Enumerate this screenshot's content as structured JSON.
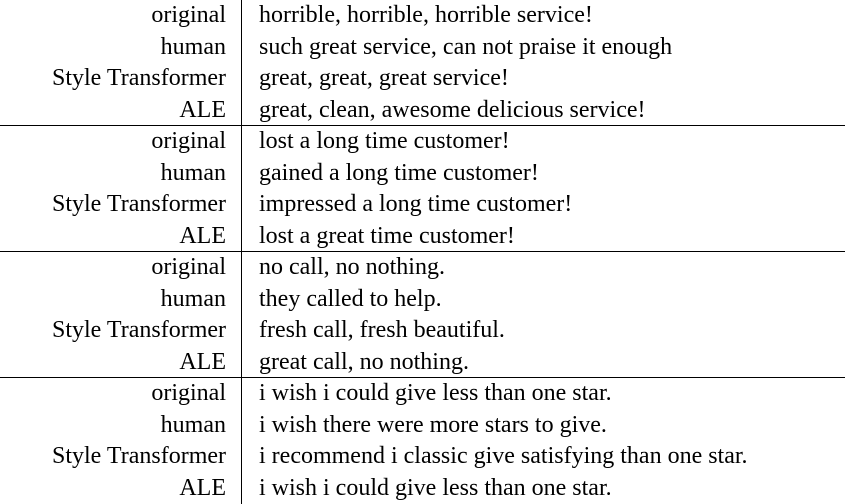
{
  "groups": [
    {
      "rows": [
        {
          "label": "original",
          "text": "horrible, horrible, horrible service!"
        },
        {
          "label": "human",
          "text": "such great service, can not praise it enough"
        },
        {
          "label": "Style Transformer",
          "text": "great, great, great service!"
        },
        {
          "label": "ALE",
          "text": "great, clean, awesome delicious service!"
        }
      ]
    },
    {
      "rows": [
        {
          "label": "original",
          "text": "lost a long time customer!"
        },
        {
          "label": "human",
          "text": "gained a long time customer!"
        },
        {
          "label": "Style Transformer",
          "text": "impressed a long time customer!"
        },
        {
          "label": "ALE",
          "text": "lost a great time customer!"
        }
      ]
    },
    {
      "rows": [
        {
          "label": "original",
          "text": "no call, no nothing."
        },
        {
          "label": "human",
          "text": "they called to help."
        },
        {
          "label": "Style Transformer",
          "text": "fresh call, fresh beautiful."
        },
        {
          "label": "ALE",
          "text": "great call, no nothing."
        }
      ]
    },
    {
      "rows": [
        {
          "label": "original",
          "text": "i wish i could give less than one star."
        },
        {
          "label": "human",
          "text": "i wish there were more stars to give."
        },
        {
          "label": "Style Transformer",
          "text": "i recommend i classic give satisfying than one star."
        },
        {
          "label": "ALE",
          "text": "i wish i could give less than one star."
        }
      ]
    }
  ]
}
